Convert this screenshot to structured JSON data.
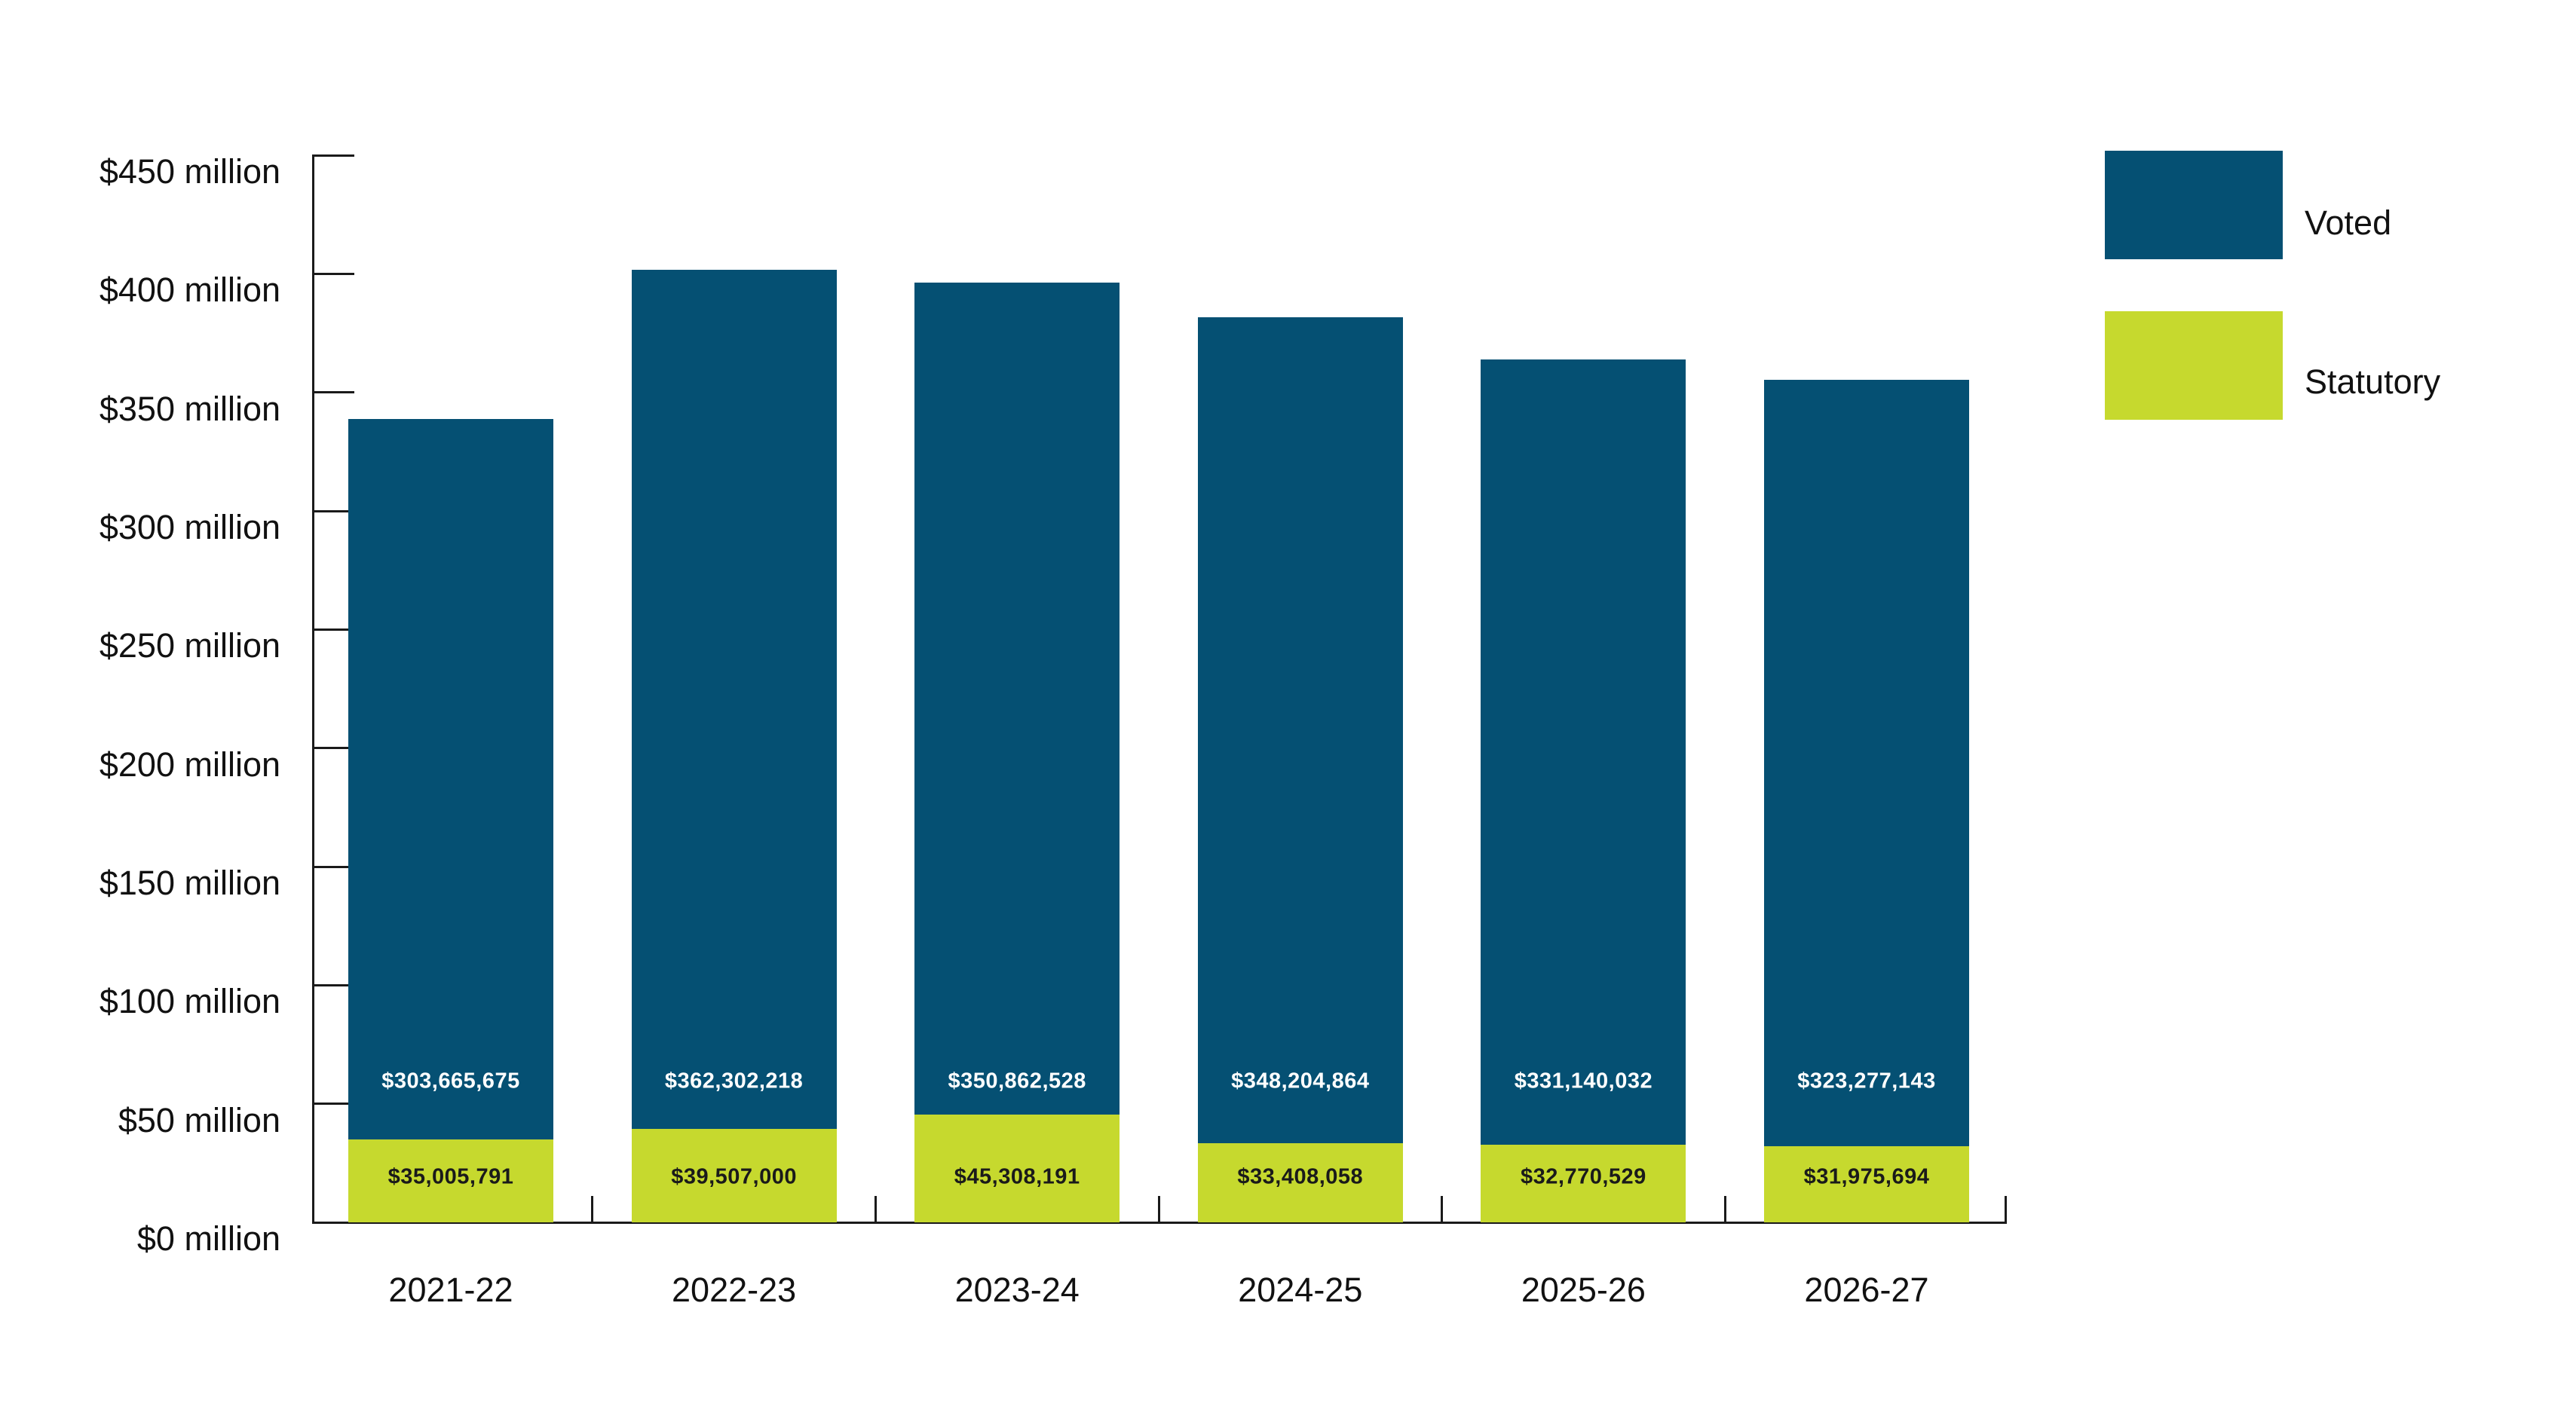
{
  "chart_data": {
    "type": "bar",
    "stacked": true,
    "title": "",
    "xlabel": "",
    "ylabel": "",
    "categories": [
      "2021-22",
      "2022-23",
      "2023-24",
      "2024-25",
      "2025-26",
      "2026-27"
    ],
    "series": [
      {
        "name": "Voted",
        "color": "#055073",
        "label_color": "#ffffff",
        "values": [
          303665675,
          362302218,
          350862528,
          348204864,
          331140032,
          323277143
        ],
        "labels": [
          "$303,665,675",
          "$362,302,218",
          "$350,862,528",
          "$348,204,864",
          "$331,140,032",
          "$323,277,143"
        ]
      },
      {
        "name": "Statutory",
        "color": "#c6d92e",
        "label_color": "#1a1a1a",
        "values": [
          35005791,
          39507000,
          45308191,
          33408058,
          32770529,
          31975694
        ],
        "labels": [
          "$35,005,791",
          "$39,507,000",
          "$45,308,191",
          "$33,408,058",
          "$32,770,529",
          "$31,975,694"
        ]
      }
    ],
    "totals": [
      338671466,
      401809218,
      396170719,
      381612922,
      363910561,
      355252837
    ],
    "y_axis": {
      "min": 0,
      "max": 450000000,
      "tick_step": 50000000,
      "tick_labels": [
        "$450 million",
        "$400 million",
        "$350 million",
        "$300 million",
        "$250 million",
        "$200 million",
        "$150 million",
        "$100 million",
        "$50 million",
        "$0 million"
      ]
    },
    "legend": {
      "position": "right",
      "entries": [
        "Voted",
        "Statutory"
      ]
    },
    "grid": false
  },
  "colors": {
    "axis": "#1a1a1a",
    "background": "#ffffff",
    "text": "#111111"
  }
}
